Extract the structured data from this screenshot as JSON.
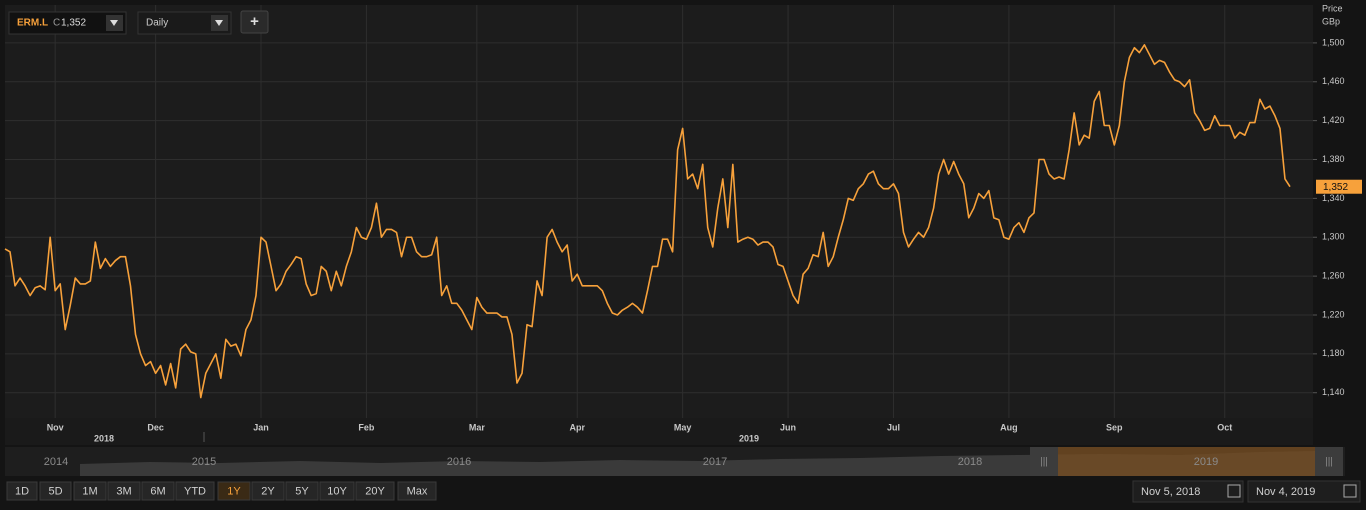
{
  "ui": {
    "ticker": "ERM.L",
    "close_prefix": "C",
    "close": "1,352",
    "interval": "Daily",
    "add_button": "+",
    "ranges": [
      "1D",
      "5D",
      "1M",
      "3M",
      "6M",
      "YTD",
      "1Y",
      "2Y",
      "5Y",
      "10Y",
      "20Y",
      "Max"
    ],
    "selected_range": "1Y",
    "start_date": "Nov 5, 2018",
    "end_date": "Nov 4, 2019",
    "navigator_years": [
      "2014",
      "2015",
      "2016",
      "2017",
      "2018",
      "2019"
    ]
  },
  "chart_data": {
    "type": "line",
    "y_label": "Price",
    "y_unit": "GBp",
    "grid": true,
    "ylim": [
      1114,
      1539
    ],
    "yticks": [
      {
        "value": 1140,
        "label": "1,140"
      },
      {
        "value": 1180,
        "label": "1,180"
      },
      {
        "value": 1220,
        "label": "1,220"
      },
      {
        "value": 1260,
        "label": "1,260"
      },
      {
        "value": 1300,
        "label": "1,300"
      },
      {
        "value": 1340,
        "label": "1,340"
      },
      {
        "value": 1380,
        "label": "1,380"
      },
      {
        "value": 1420,
        "label": "1,420"
      },
      {
        "value": 1460,
        "label": "1,460"
      },
      {
        "value": 1500,
        "label": "1,500"
      }
    ],
    "year_labels": [
      "2018",
      "2019"
    ],
    "current_price": {
      "value": 1352,
      "label": "1,352"
    },
    "categories": [
      null,
      null,
      null,
      null,
      null,
      null,
      null,
      null,
      null,
      null,
      "Nov",
      null,
      null,
      null,
      null,
      null,
      null,
      null,
      null,
      null,
      null,
      null,
      null,
      null,
      null,
      null,
      null,
      null,
      null,
      null,
      "Dec",
      null,
      null,
      null,
      null,
      null,
      null,
      null,
      null,
      null,
      null,
      null,
      null,
      null,
      null,
      null,
      null,
      null,
      null,
      null,
      null,
      "Jan",
      null,
      null,
      null,
      null,
      null,
      null,
      null,
      null,
      null,
      null,
      null,
      null,
      null,
      null,
      null,
      null,
      null,
      null,
      null,
      null,
      "Feb",
      null,
      null,
      null,
      null,
      null,
      null,
      null,
      null,
      null,
      null,
      null,
      null,
      null,
      null,
      null,
      null,
      null,
      null,
      null,
      null,
      null,
      "Mar",
      null,
      null,
      null,
      null,
      null,
      null,
      null,
      null,
      null,
      null,
      null,
      null,
      null,
      null,
      null,
      null,
      null,
      null,
      null,
      "Apr",
      null,
      null,
      null,
      null,
      null,
      null,
      null,
      null,
      null,
      null,
      null,
      null,
      null,
      null,
      null,
      null,
      null,
      null,
      null,
      null,
      "May",
      null,
      null,
      null,
      null,
      null,
      null,
      null,
      null,
      null,
      null,
      null,
      null,
      null,
      null,
      null,
      null,
      null,
      null,
      null,
      null,
      "Jun",
      null,
      null,
      null,
      null,
      null,
      null,
      null,
      null,
      null,
      null,
      null,
      null,
      null,
      null,
      null,
      null,
      null,
      null,
      null,
      null,
      "Jul",
      null,
      null,
      null,
      null,
      null,
      null,
      null,
      null,
      null,
      null,
      null,
      null,
      null,
      null,
      null,
      null,
      null,
      null,
      null,
      null,
      null,
      null,
      "Aug",
      null,
      null,
      null,
      null,
      null,
      null,
      null,
      null,
      null,
      null,
      null,
      null,
      null,
      null,
      null,
      null,
      null,
      null,
      null,
      null,
      "Sep",
      null,
      null,
      null,
      null,
      null,
      null,
      null,
      null,
      null,
      null,
      null,
      null,
      null,
      null,
      null,
      null,
      null,
      null,
      null,
      null,
      null,
      "Oct",
      null,
      null,
      null,
      null,
      null,
      null,
      null,
      null,
      null,
      null,
      null,
      null,
      null
    ],
    "series": [
      {
        "name": "ERM.L",
        "color": "#f7a13b",
        "values": [
          1288,
          1285,
          1250,
          1258,
          1250,
          1240,
          1248,
          1250,
          1246,
          1300,
          1245,
          1252,
          1205,
          1230,
          1258,
          1252,
          1252,
          1255,
          1295,
          1268,
          1278,
          1270,
          1276,
          1280,
          1280,
          1250,
          1200,
          1180,
          1168,
          1172,
          1160,
          1168,
          1148,
          1170,
          1145,
          1185,
          1190,
          1182,
          1180,
          1135,
          1160,
          1170,
          1180,
          1155,
          1195,
          1188,
          1190,
          1178,
          1205,
          1215,
          1240,
          1300,
          1295,
          1270,
          1245,
          1252,
          1265,
          1272,
          1280,
          1278,
          1252,
          1240,
          1242,
          1270,
          1265,
          1245,
          1265,
          1250,
          1270,
          1285,
          1310,
          1300,
          1298,
          1310,
          1335,
          1300,
          1308,
          1308,
          1305,
          1280,
          1300,
          1300,
          1285,
          1280,
          1280,
          1282,
          1300,
          1240,
          1250,
          1232,
          1232,
          1225,
          1215,
          1205,
          1238,
          1228,
          1222,
          1222,
          1222,
          1218,
          1218,
          1200,
          1150,
          1160,
          1210,
          1208,
          1255,
          1240,
          1300,
          1308,
          1295,
          1285,
          1292,
          1255,
          1262,
          1250,
          1250,
          1250,
          1250,
          1245,
          1232,
          1222,
          1220,
          1225,
          1228,
          1232,
          1228,
          1222,
          1245,
          1270,
          1270,
          1298,
          1298,
          1285,
          1390,
          1412,
          1360,
          1365,
          1350,
          1375,
          1310,
          1290,
          1330,
          1360,
          1310,
          1375,
          1295,
          1298,
          1300,
          1298,
          1292,
          1295,
          1295,
          1290,
          1272,
          1270,
          1255,
          1240,
          1232,
          1262,
          1268,
          1282,
          1280,
          1305,
          1270,
          1280,
          1300,
          1318,
          1340,
          1338,
          1350,
          1355,
          1365,
          1368,
          1355,
          1350,
          1350,
          1355,
          1345,
          1305,
          1290,
          1298,
          1305,
          1300,
          1310,
          1330,
          1365,
          1380,
          1365,
          1378,
          1365,
          1355,
          1320,
          1330,
          1345,
          1340,
          1348,
          1320,
          1318,
          1300,
          1298,
          1310,
          1315,
          1305,
          1320,
          1325,
          1380,
          1380,
          1365,
          1360,
          1362,
          1360,
          1390,
          1428,
          1395,
          1405,
          1402,
          1440,
          1450,
          1415,
          1415,
          1395,
          1415,
          1460,
          1485,
          1495,
          1490,
          1498,
          1488,
          1478,
          1482,
          1480,
          1470,
          1462,
          1460,
          1455,
          1462,
          1428,
          1420,
          1410,
          1412,
          1425,
          1415,
          1415,
          1415,
          1402,
          1408,
          1405,
          1418,
          1418,
          1442,
          1432,
          1435,
          1425,
          1412,
          1360,
          1352
        ]
      }
    ]
  }
}
